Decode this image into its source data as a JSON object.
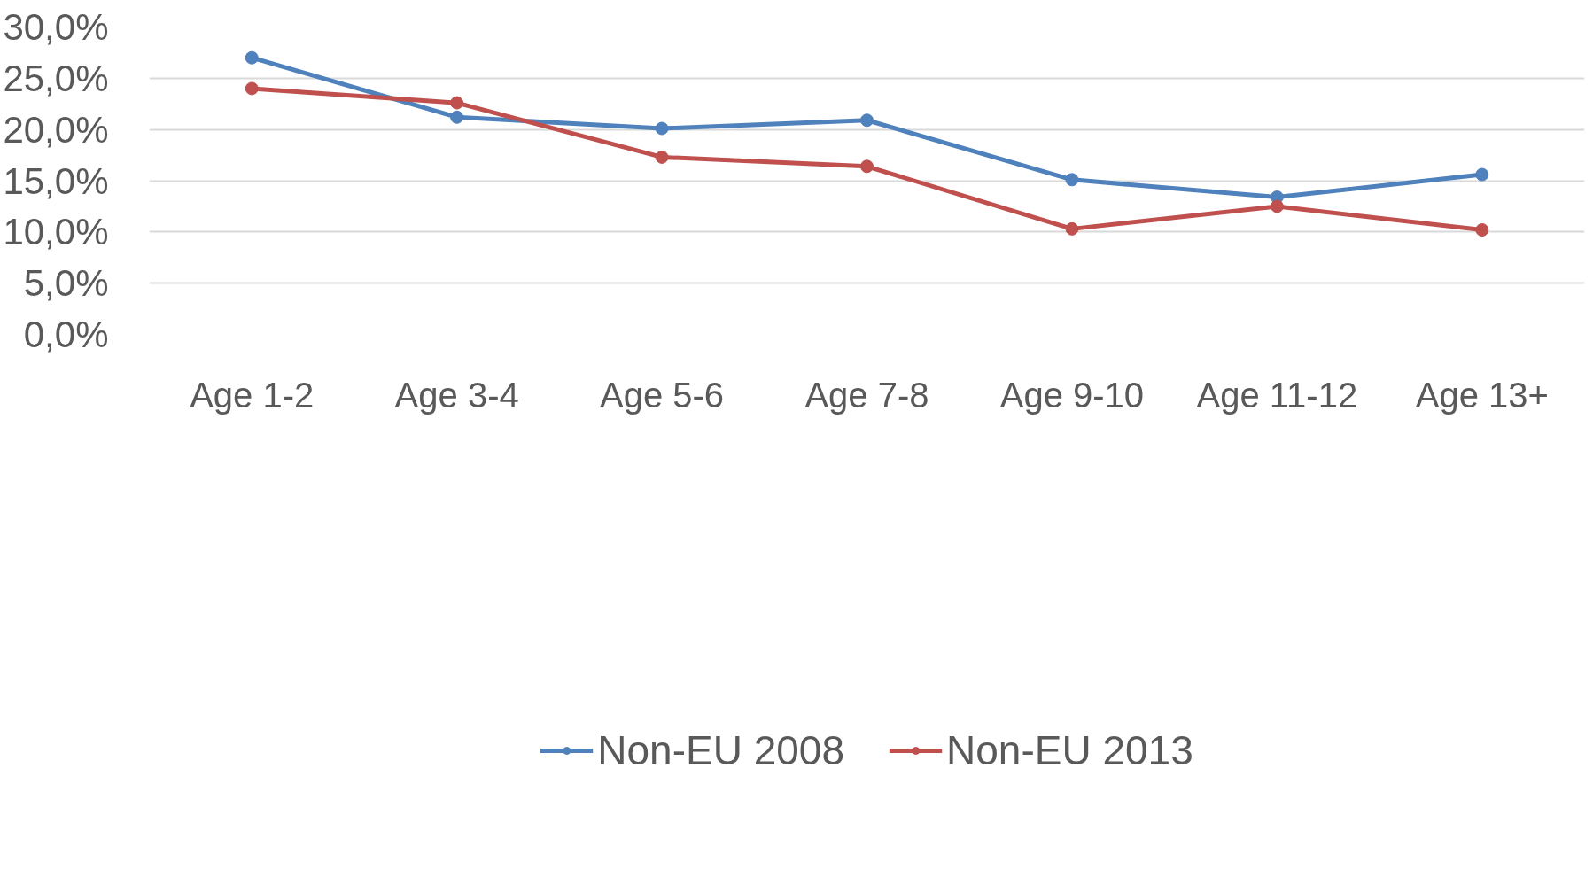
{
  "chart_data": {
    "type": "line",
    "categories": [
      "Age 1-2",
      "Age 3-4",
      "Age 5-6",
      "Age 7-8",
      "Age 9-10",
      "Age 11-12",
      "Age 13+"
    ],
    "series": [
      {
        "name": "Non-EU 2008",
        "color": "#4f81bd",
        "values": [
          27.0,
          21.2,
          20.1,
          20.9,
          15.1,
          13.4,
          15.6
        ]
      },
      {
        "name": "Non-EU 2013",
        "color": "#c0504d",
        "values": [
          24.0,
          22.6,
          17.3,
          16.4,
          10.3,
          12.5,
          10.2
        ]
      }
    ],
    "ylim": [
      0,
      30
    ],
    "yticks": [
      {
        "value": 0,
        "label": "0,0%"
      },
      {
        "value": 5,
        "label": "5,0%"
      },
      {
        "value": 10,
        "label": "10,0%"
      },
      {
        "value": 15,
        "label": "15,0%"
      },
      {
        "value": 20,
        "label": "20,0%"
      },
      {
        "value": 25,
        "label": "25,0%"
      },
      {
        "value": 30,
        "label": "30,0%"
      }
    ],
    "grid": "y",
    "legend": "bottom",
    "marker": "circle",
    "line_style": "solid"
  }
}
